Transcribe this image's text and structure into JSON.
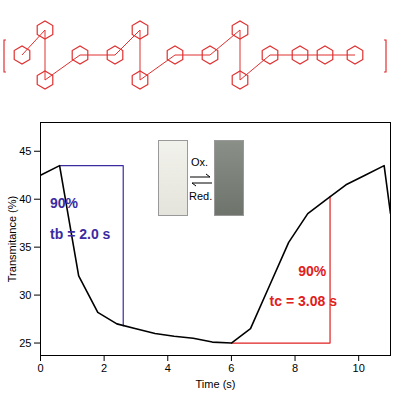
{
  "chart_data": {
    "type": "line",
    "x_label": "Time (s)",
    "y_label": "Transmitance (%)",
    "xlim": [
      0,
      11
    ],
    "ylim": [
      23.7,
      48
    ],
    "xticks": [
      0,
      2,
      4,
      6,
      8,
      10
    ],
    "yticks": [
      25,
      30,
      35,
      40,
      45
    ],
    "color": "#000000",
    "x": [
      0,
      0.6,
      1.2,
      1.8,
      2.4,
      3.0,
      3.6,
      4.2,
      4.8,
      5.4,
      6.0,
      6.6,
      7.2,
      7.8,
      8.4,
      9.0,
      9.6,
      10.2,
      10.8,
      11.0
    ],
    "values": [
      42.5,
      43.5,
      32.0,
      28.2,
      27.0,
      26.5,
      26.0,
      25.7,
      25.5,
      25.1,
      25.0,
      26.5,
      31.0,
      35.5,
      38.5,
      40.0,
      41.5,
      42.5,
      43.5,
      38.5
    ],
    "guides": [
      {
        "color": "#3a2ca0",
        "x": [
          0.6,
          2.6,
          2.6
        ],
        "y": [
          43.5,
          43.5,
          26.8
        ]
      },
      {
        "color": "#e02020",
        "x": [
          6.0,
          9.1,
          9.1
        ],
        "y": [
          25.0,
          25.0,
          40.3
        ]
      }
    ],
    "annotations": [
      {
        "text": "90%",
        "x": 0.3,
        "y": 39.5,
        "color": "#3a2ca0"
      },
      {
        "text": "tb = 2.0 s",
        "x": 0.3,
        "y": 36.3,
        "color": "#3a2ca0"
      },
      {
        "text": "90%",
        "x": 8.1,
        "y": 32.5,
        "color": "#e02020"
      },
      {
        "text": "tc = 3.08 s",
        "x": 7.2,
        "y": 29.3,
        "color": "#e02020"
      }
    ],
    "inset_labels": [
      "Ox.",
      "Red."
    ]
  }
}
